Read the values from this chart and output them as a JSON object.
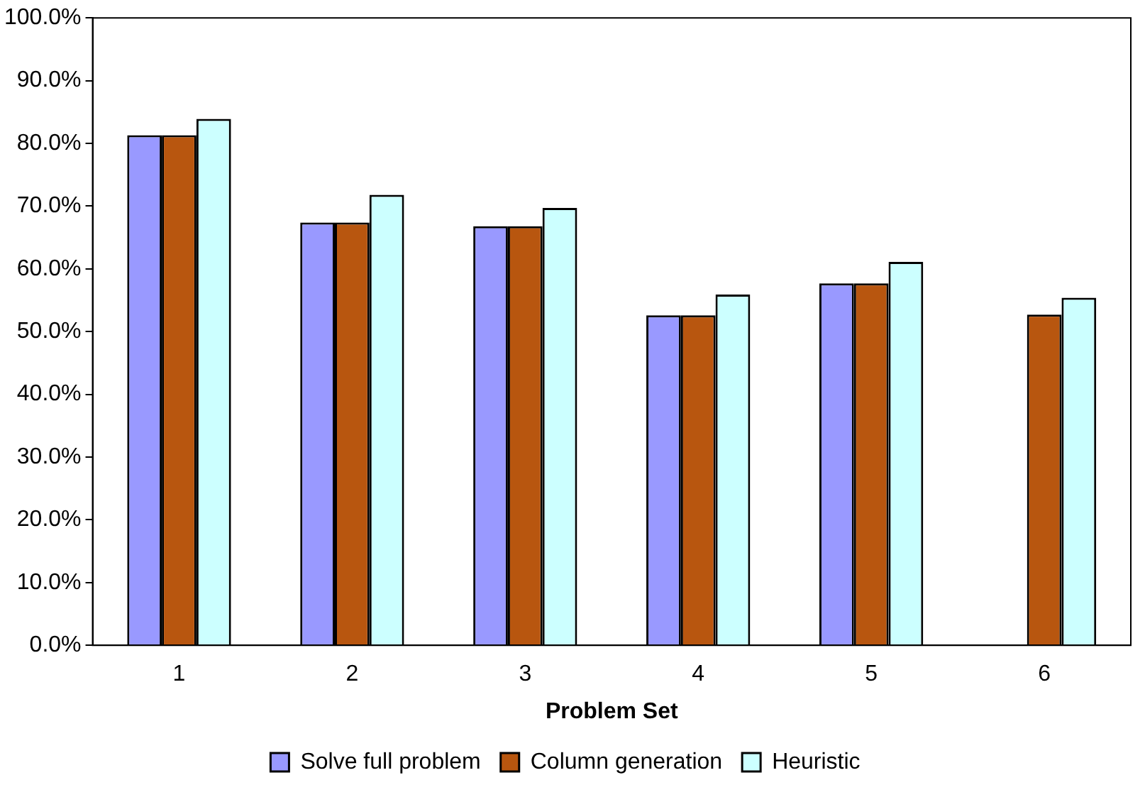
{
  "chart_data": {
    "type": "bar",
    "xlabel": "Problem Set",
    "categories": [
      "1",
      "2",
      "3",
      "4",
      "5",
      "6"
    ],
    "series": [
      {
        "name": "Solve full problem",
        "color": "#9999ff",
        "values": [
          81.3,
          67.4,
          66.8,
          52.6,
          57.7,
          null
        ]
      },
      {
        "name": "Column generation",
        "color": "#b8560f",
        "values": [
          81.3,
          67.4,
          66.8,
          52.6,
          57.7,
          52.7
        ]
      },
      {
        "name": "Heuristic",
        "color": "#ccffff",
        "values": [
          83.9,
          71.8,
          69.7,
          55.9,
          61.1,
          55.4
        ]
      }
    ],
    "ylim": [
      0,
      100
    ],
    "yticks": [
      {
        "value": 0,
        "label": "0.0%"
      },
      {
        "value": 10,
        "label": "10.0%"
      },
      {
        "value": 20,
        "label": "20.0%"
      },
      {
        "value": 30,
        "label": "30.0%"
      },
      {
        "value": 40,
        "label": "40.0%"
      },
      {
        "value": 50,
        "label": "50.0%"
      },
      {
        "value": 60,
        "label": "60.0%"
      },
      {
        "value": 70,
        "label": "70.0%"
      },
      {
        "value": 80,
        "label": "80.0%"
      },
      {
        "value": 90,
        "label": "90.0%"
      },
      {
        "value": 100,
        "label": "100.0%"
      }
    ],
    "grid": false,
    "legend": "bottom"
  }
}
